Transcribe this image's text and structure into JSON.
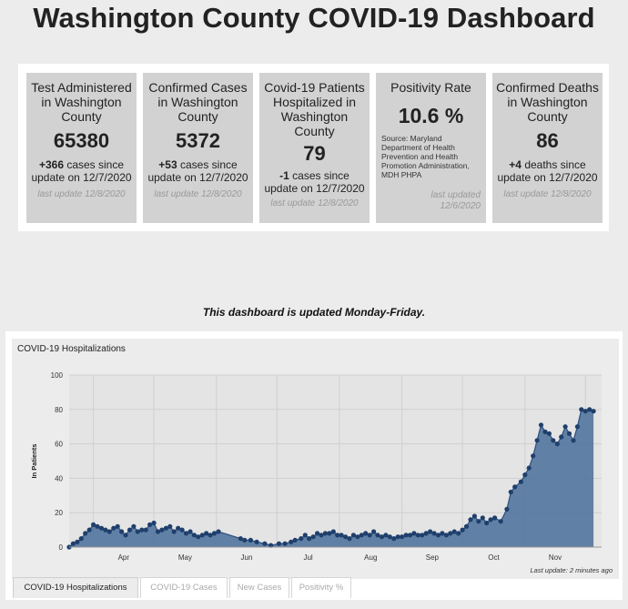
{
  "page_title": "Washington County COVID-19 Dashboard",
  "cards": [
    {
      "title": "Test Administered in Washington County",
      "value": "65380",
      "change_num": "+366",
      "change_text": " cases since update on 12/7/2020",
      "last_update": "last update 12/8/2020"
    },
    {
      "title": "Confirmed Cases in Washington County",
      "value": "5372",
      "change_num": "+53",
      "change_text": " cases since update on 12/7/2020",
      "last_update": "last update 12/8/2020"
    },
    {
      "title": "Covid-19 Patients Hospitalized in Washington County",
      "value": "79",
      "change_num": "-1",
      "change_text": " cases since update on 12/7/2020",
      "last_update": "last update 12/8/2020"
    },
    {
      "title": "Positivity Rate",
      "value": "10.6 %",
      "source": "Source: Maryland Department of Health Prevention and Health Promotion Administration, MDH PHPA",
      "last_update_line1": "last updated",
      "last_update_line2": "12/6/2020"
    },
    {
      "title": "Confirmed Deaths in Washington County",
      "value": "86",
      "change_num": "+4",
      "change_text": " deaths since update on 12/7/2020",
      "last_update": "last update 12/8/2020"
    }
  ],
  "notice": "This dashboard is updated Monday-Friday.",
  "chart_data": {
    "type": "area",
    "title": "COVID-19 Hospitalizations",
    "ylabel": "In Patients",
    "xlabel": "",
    "ylim": [
      0,
      100
    ],
    "yticks": [
      0,
      20,
      40,
      60,
      80,
      100
    ],
    "month_ticks": [
      "Apr",
      "May",
      "Jun",
      "Jul",
      "Aug",
      "Sep",
      "Oct",
      "Nov"
    ],
    "x_start": "2020-03-20",
    "x_end": "2020-12-09",
    "footer": "Last update: 2 minutes ago",
    "color": "#4a6f9a",
    "points": [
      [
        "2020-03-20",
        0
      ],
      [
        "2020-03-22",
        2
      ],
      [
        "2020-03-24",
        3
      ],
      [
        "2020-03-26",
        5
      ],
      [
        "2020-03-28",
        8
      ],
      [
        "2020-03-30",
        10
      ],
      [
        "2020-04-01",
        13
      ],
      [
        "2020-04-03",
        12
      ],
      [
        "2020-04-05",
        11
      ],
      [
        "2020-04-07",
        10
      ],
      [
        "2020-04-09",
        9
      ],
      [
        "2020-04-11",
        11
      ],
      [
        "2020-04-13",
        12
      ],
      [
        "2020-04-15",
        9
      ],
      [
        "2020-04-17",
        7
      ],
      [
        "2020-04-19",
        10
      ],
      [
        "2020-04-21",
        12
      ],
      [
        "2020-04-23",
        9
      ],
      [
        "2020-04-25",
        10
      ],
      [
        "2020-04-27",
        10
      ],
      [
        "2020-04-29",
        13
      ],
      [
        "2020-05-01",
        14
      ],
      [
        "2020-05-03",
        9
      ],
      [
        "2020-05-05",
        10
      ],
      [
        "2020-05-07",
        11
      ],
      [
        "2020-05-09",
        12
      ],
      [
        "2020-05-11",
        9
      ],
      [
        "2020-05-13",
        11
      ],
      [
        "2020-05-15",
        10
      ],
      [
        "2020-05-17",
        8
      ],
      [
        "2020-05-19",
        9
      ],
      [
        "2020-05-21",
        7
      ],
      [
        "2020-05-23",
        6
      ],
      [
        "2020-05-25",
        7
      ],
      [
        "2020-05-27",
        8
      ],
      [
        "2020-05-29",
        7
      ],
      [
        "2020-05-31",
        8
      ],
      [
        "2020-06-02",
        9
      ],
      [
        "2020-06-13",
        5
      ],
      [
        "2020-06-15",
        4
      ],
      [
        "2020-06-18",
        4
      ],
      [
        "2020-06-21",
        3
      ],
      [
        "2020-06-25",
        2
      ],
      [
        "2020-06-28",
        1
      ],
      [
        "2020-07-02",
        2
      ],
      [
        "2020-07-05",
        2
      ],
      [
        "2020-07-08",
        3
      ],
      [
        "2020-07-10",
        4
      ],
      [
        "2020-07-13",
        5
      ],
      [
        "2020-07-15",
        7
      ],
      [
        "2020-07-17",
        5
      ],
      [
        "2020-07-19",
        6
      ],
      [
        "2020-07-21",
        8
      ],
      [
        "2020-07-23",
        7
      ],
      [
        "2020-07-25",
        8
      ],
      [
        "2020-07-27",
        8
      ],
      [
        "2020-07-29",
        9
      ],
      [
        "2020-07-31",
        7
      ],
      [
        "2020-08-02",
        7
      ],
      [
        "2020-08-04",
        6
      ],
      [
        "2020-08-06",
        5
      ],
      [
        "2020-08-08",
        7
      ],
      [
        "2020-08-10",
        6
      ],
      [
        "2020-08-12",
        7
      ],
      [
        "2020-08-14",
        8
      ],
      [
        "2020-08-16",
        7
      ],
      [
        "2020-08-18",
        9
      ],
      [
        "2020-08-20",
        7
      ],
      [
        "2020-08-22",
        6
      ],
      [
        "2020-08-24",
        7
      ],
      [
        "2020-08-26",
        6
      ],
      [
        "2020-08-28",
        5
      ],
      [
        "2020-08-30",
        6
      ],
      [
        "2020-09-01",
        6
      ],
      [
        "2020-09-03",
        7
      ],
      [
        "2020-09-05",
        7
      ],
      [
        "2020-09-07",
        8
      ],
      [
        "2020-09-09",
        7
      ],
      [
        "2020-09-11",
        7
      ],
      [
        "2020-09-13",
        8
      ],
      [
        "2020-09-15",
        9
      ],
      [
        "2020-09-17",
        8
      ],
      [
        "2020-09-19",
        7
      ],
      [
        "2020-09-21",
        8
      ],
      [
        "2020-09-23",
        7
      ],
      [
        "2020-09-25",
        8
      ],
      [
        "2020-09-27",
        9
      ],
      [
        "2020-09-29",
        8
      ],
      [
        "2020-10-01",
        10
      ],
      [
        "2020-10-03",
        12
      ],
      [
        "2020-10-05",
        16
      ],
      [
        "2020-10-07",
        18
      ],
      [
        "2020-10-09",
        15
      ],
      [
        "2020-10-11",
        17
      ],
      [
        "2020-10-13",
        14
      ],
      [
        "2020-10-15",
        16
      ],
      [
        "2020-10-17",
        17
      ],
      [
        "2020-10-20",
        15
      ],
      [
        "2020-10-23",
        22
      ],
      [
        "2020-10-25",
        32
      ],
      [
        "2020-10-27",
        35
      ],
      [
        "2020-10-30",
        38
      ],
      [
        "2020-11-01",
        42
      ],
      [
        "2020-11-03",
        46
      ],
      [
        "2020-11-05",
        53
      ],
      [
        "2020-11-07",
        62
      ],
      [
        "2020-11-09",
        71
      ],
      [
        "2020-11-11",
        67
      ],
      [
        "2020-11-13",
        66
      ],
      [
        "2020-11-15",
        62
      ],
      [
        "2020-11-17",
        60
      ],
      [
        "2020-11-19",
        64
      ],
      [
        "2020-11-21",
        70
      ],
      [
        "2020-11-23",
        66
      ],
      [
        "2020-11-25",
        62
      ],
      [
        "2020-11-27",
        70
      ],
      [
        "2020-11-29",
        80
      ],
      [
        "2020-12-01",
        79
      ],
      [
        "2020-12-03",
        80
      ],
      [
        "2020-12-05",
        79
      ]
    ]
  },
  "tabs": [
    "COVID-19 Hospitalizations",
    "COVID-19 Cases",
    "New Cases",
    "Positivity %"
  ]
}
